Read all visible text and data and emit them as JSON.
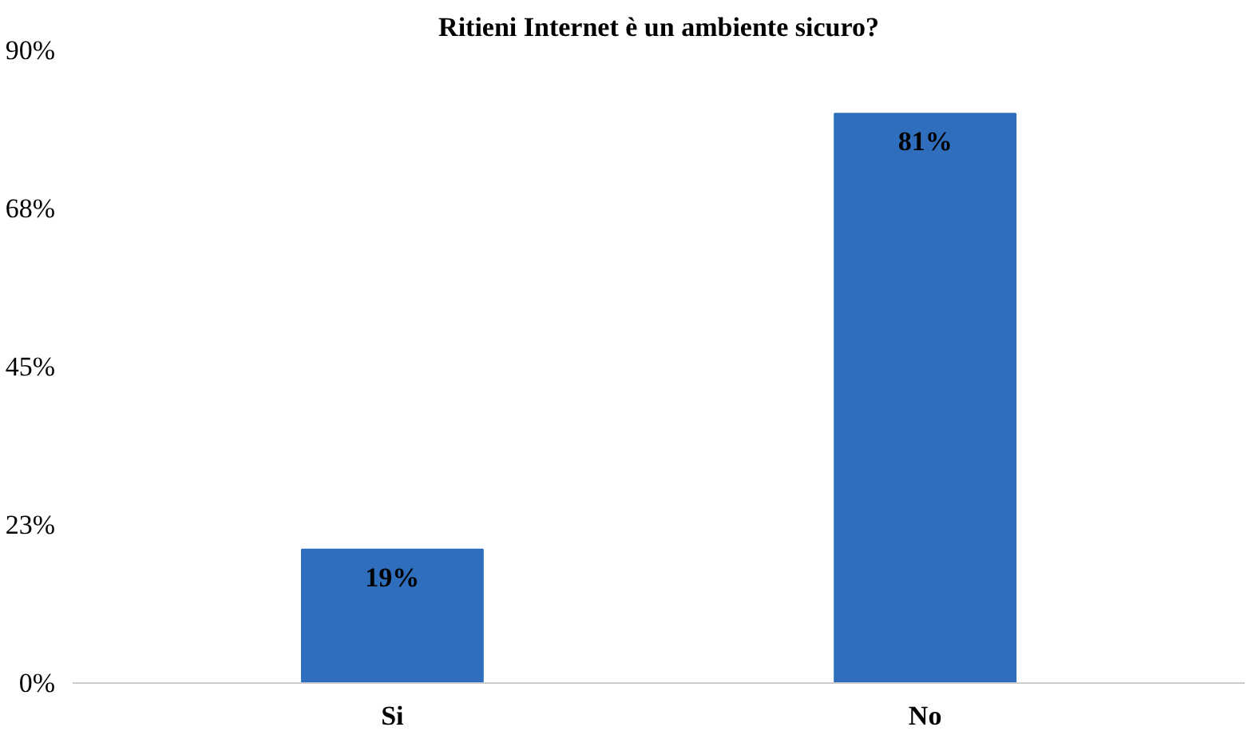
{
  "chart_data": {
    "type": "bar",
    "title": "Ritieni Internet è un ambiente sicuro?",
    "categories": [
      "Si",
      "No"
    ],
    "values": [
      19,
      81
    ],
    "value_labels": [
      "19%",
      "81%"
    ],
    "color": "#2f6ebd",
    "ylim": [
      0,
      90
    ],
    "yticks": [
      {
        "value": 0,
        "label": "0%"
      },
      {
        "value": 22.5,
        "label": "23%"
      },
      {
        "value": 45,
        "label": "45%"
      },
      {
        "value": 67.5,
        "label": "68%"
      },
      {
        "value": 90,
        "label": "90%"
      }
    ],
    "grid": false
  }
}
